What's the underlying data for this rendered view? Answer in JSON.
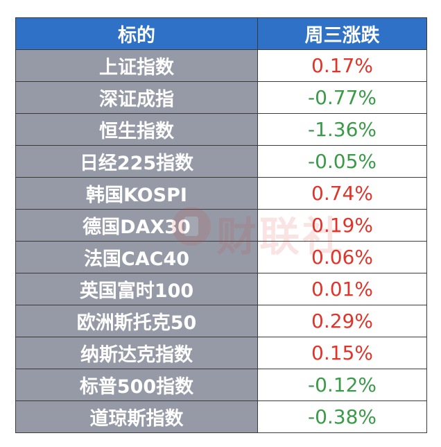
{
  "table": {
    "headers": [
      "标的",
      "周三涨跌"
    ],
    "rows": [
      {
        "name": "上证指数",
        "change": "0.17%",
        "direction": "up"
      },
      {
        "name": "深证成指",
        "change": "-0.77%",
        "direction": "down"
      },
      {
        "name": "恒生指数",
        "change": "-1.36%",
        "direction": "down"
      },
      {
        "name": "日经225指数",
        "change": "-0.05%",
        "direction": "down"
      },
      {
        "name": "韩国KOSPI",
        "change": "0.74%",
        "direction": "up"
      },
      {
        "name": "德国DAX30",
        "change": "0.19%",
        "direction": "up"
      },
      {
        "name": "法国CAC40",
        "change": "0.06%",
        "direction": "up"
      },
      {
        "name": "英国富时100",
        "change": "0.01%",
        "direction": "up"
      },
      {
        "name": "欧洲斯托克50",
        "change": "0.29%",
        "direction": "up"
      },
      {
        "name": "纳斯达克指数",
        "change": "0.15%",
        "direction": "up"
      },
      {
        "name": "标普500指数",
        "change": "-0.12%",
        "direction": "down"
      },
      {
        "name": "道琼斯指数",
        "change": "-0.38%",
        "direction": "down"
      }
    ]
  },
  "watermark": {
    "text": "财联社"
  },
  "colors": {
    "header_bg": "#2e71c7",
    "name_bg": "#959aa6",
    "up": "#e0342a",
    "down": "#3a9a48"
  }
}
